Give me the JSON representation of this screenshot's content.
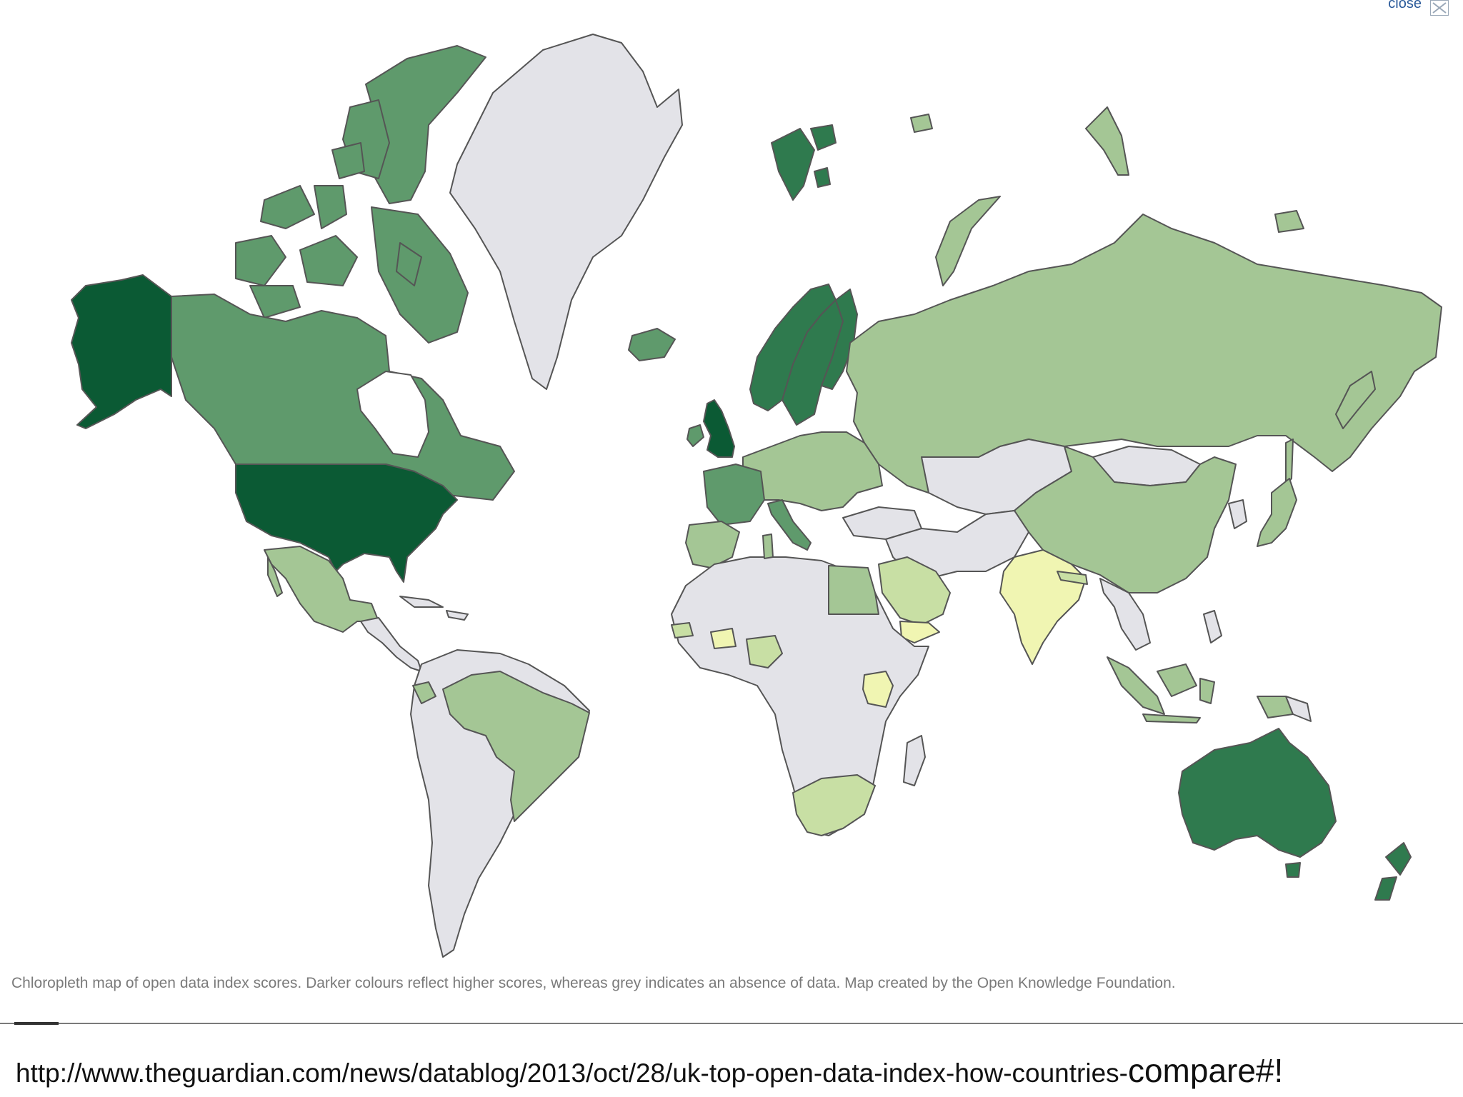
{
  "close": {
    "label": "close"
  },
  "caption": "Chloropleth map of open data index scores. Darker colours reflect higher scores, whereas grey indicates an absence of data. Map created by the Open Knowledge Foundation.",
  "source": {
    "url_main": "http://www.theguardian.com/news/datablog/2013/oct/28/uk-top-open-data-index-how-countries-",
    "url_tail": "compare#!"
  },
  "colors": {
    "ocean": "#ffffff",
    "no_data": "#e3e3e8",
    "border": "#555555",
    "score_top": "#0b5a34",
    "score_high": "#2f7a4e",
    "score_upper": "#5f9a6c",
    "score_mid": "#a4c695",
    "score_low": "#c8dfa4",
    "score_lowest": "#f0f5b2"
  }
}
